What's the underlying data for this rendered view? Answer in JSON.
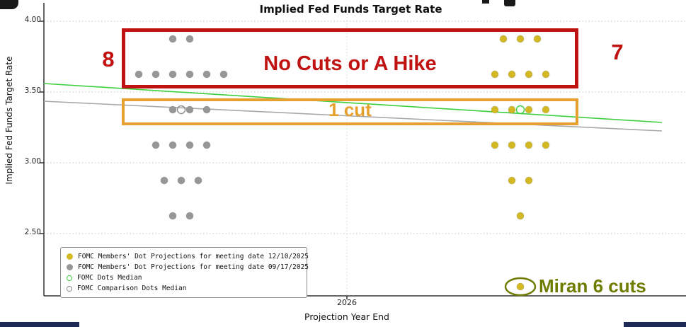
{
  "chart_data": {
    "type": "scatter",
    "title": "Implied Fed Funds Target Rate",
    "xlabel": "Projection Year End",
    "ylabel": "Implied Fed Funds Target Rate",
    "x_ticks": [
      "2026"
    ],
    "y_ticks": [
      "4.00",
      "3.50",
      "3.00",
      "2.50"
    ],
    "ylim": [
      2.05,
      4.05
    ],
    "grid": "dotted",
    "series": [
      {
        "name": "FOMC Members' Dot Projections for meeting date 12/10/2025",
        "color": "#d3ba25",
        "cluster": "right",
        "dots": [
          {
            "rate": 3.875,
            "count": 3
          },
          {
            "rate": 3.625,
            "count": 4
          },
          {
            "rate": 3.375,
            "count": 4
          },
          {
            "rate": 3.125,
            "count": 4
          },
          {
            "rate": 2.875,
            "count": 2
          },
          {
            "rate": 2.625,
            "count": 1
          },
          {
            "rate": 2.125,
            "count": 1
          }
        ]
      },
      {
        "name": "FOMC Members' Dot Projections for meeting date 09/17/2025",
        "color": "#979797",
        "cluster": "left",
        "dots": [
          {
            "rate": 3.875,
            "count": 2
          },
          {
            "rate": 3.625,
            "count": 6
          },
          {
            "rate": 3.375,
            "count": 3,
            "offset": 0.5
          },
          {
            "rate": 3.125,
            "count": 4
          },
          {
            "rate": 2.875,
            "count": 3
          },
          {
            "rate": 2.625,
            "count": 2
          }
        ]
      }
    ],
    "medians": [
      {
        "name": "FOMC Dots Median",
        "color": "#3ecf3e",
        "rate": 3.375,
        "cluster": "right"
      },
      {
        "name": "FOMC Comparison Dots Median",
        "color": "#8a8a8a",
        "rate": 3.375,
        "cluster": "left"
      }
    ],
    "trend_lines": [
      {
        "name": "FOMC Dots Median",
        "color": "#3ecf3e",
        "start_rate": 3.56,
        "end_rate": 3.285
      },
      {
        "name": "FOMC Comparison Dots Median",
        "color": "#a8a8a8",
        "start_rate": 3.435,
        "end_rate": 3.225
      }
    ],
    "legend": [
      {
        "marker": "dot-filled",
        "color": "#d3ba25",
        "label": "FOMC Members' Dot Projections for meeting date 12/10/2025"
      },
      {
        "marker": "dot-filled",
        "color": "#979797",
        "label": "FOMC Members' Dot Projections for meeting date 09/17/2025"
      },
      {
        "marker": "circle-open",
        "color": "#3ecf3e",
        "label": "FOMC Dots Median"
      },
      {
        "marker": "circle-open",
        "color": "#8a8a8a",
        "label": "FOMC Comparison Dots Median"
      }
    ],
    "annotations": {
      "no_cuts_box": {
        "label": "No Cuts or A Hike",
        "color": "#c11212",
        "left_count": "8",
        "right_count": "7"
      },
      "one_cut_box": {
        "label": "1 cut",
        "color": "#e6a02e"
      },
      "miran": {
        "label": "Miran 6 cuts",
        "color": "#6e7d01",
        "rate": 2.125
      }
    }
  }
}
